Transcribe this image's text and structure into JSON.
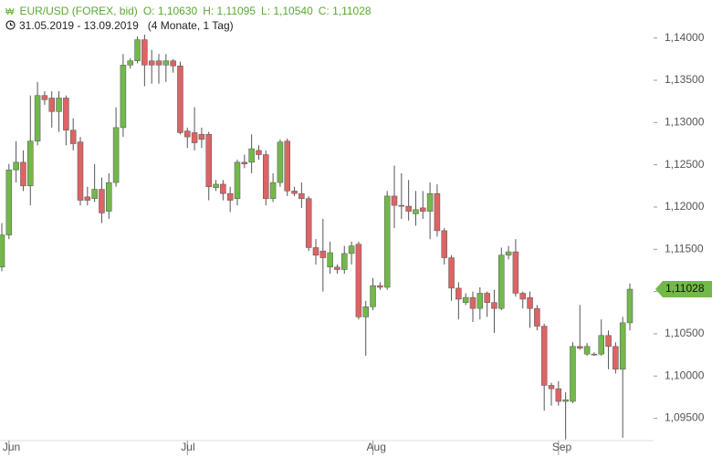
{
  "header": {
    "title": "EUR/USD (FOREX, bid)",
    "ohlc": [
      "O: 1,10630",
      "H: 1,11095",
      "L: 1,10540",
      "C: 1,11028"
    ],
    "range": "31.05.2019 - 13.09.2019",
    "duration": "(4 Monate, 1 Tag)"
  },
  "chart_data": {
    "type": "candlestick",
    "categories": [
      null,
      "Jun",
      null,
      null,
      null,
      null,
      null,
      null,
      null,
      null,
      null,
      null,
      null,
      null,
      null,
      null,
      null,
      null,
      null,
      null,
      null,
      null,
      null,
      null,
      null,
      null,
      "Jul",
      null,
      null,
      null,
      null,
      null,
      null,
      null,
      null,
      null,
      null,
      null,
      null,
      null,
      null,
      null,
      null,
      null,
      null,
      null,
      null,
      null,
      null,
      null,
      null,
      null,
      "Aug",
      null,
      null,
      null,
      null,
      null,
      null,
      null,
      null,
      null,
      null,
      null,
      null,
      null,
      null,
      null,
      null,
      null,
      null,
      null,
      null,
      null,
      null,
      null,
      null,
      null,
      "Sep",
      null,
      null,
      null,
      null,
      null,
      null,
      null,
      null,
      null,
      null
    ],
    "open": [
      1.1129,
      1.1167,
      1.1244,
      1.1253,
      1.1225,
      1.1278,
      1.1332,
      1.1329,
      1.1313,
      1.1329,
      1.1291,
      1.1277,
      1.1212,
      1.121,
      1.1221,
      1.1195,
      1.1229,
      1.1294,
      1.1368,
      1.1373,
      1.1398,
      1.1373,
      1.1373,
      1.1368,
      1.1373,
      1.1367,
      1.129,
      1.1288,
      1.1286,
      1.1286,
      1.1223,
      1.1227,
      1.1216,
      1.121,
      1.1253,
      1.1253,
      1.1267,
      1.1262,
      1.121,
      1.1229,
      1.1278,
      1.1219,
      1.1216,
      1.121,
      1.1152,
      1.1148,
      1.1129,
      1.1129,
      1.1126,
      1.1145,
      1.1156,
      1.107,
      1.1082,
      1.1107,
      1.1105,
      1.1213,
      1.1202,
      1.1201,
      1.1192,
      1.1199,
      1.1195,
      1.1216,
      1.1172,
      1.114,
      1.1104,
      1.1087,
      1.1093,
      1.108,
      1.1098,
      1.1087,
      1.108,
      1.1143,
      1.1147,
      1.1098,
      1.1093,
      1.108,
      1.1059,
      1.0989,
      1.0985,
      1.097,
      1.097,
      1.1035,
      1.1026,
      1.1026,
      1.1026,
      1.1048,
      1.1035,
      1.1008,
      1.1063
    ],
    "high": [
      1.1181,
      1.1251,
      1.1278,
      1.1267,
      1.1332,
      1.1348,
      1.1337,
      1.1337,
      1.1337,
      1.1332,
      1.1305,
      1.1283,
      1.1224,
      1.1251,
      1.1235,
      1.124,
      1.1318,
      1.1381,
      1.1376,
      1.1402,
      1.1404,
      1.1386,
      1.1381,
      1.1381,
      1.1375,
      1.1372,
      1.1294,
      1.1318,
      1.1294,
      1.1289,
      1.1232,
      1.1232,
      1.1224,
      1.1256,
      1.1262,
      1.1286,
      1.1273,
      1.1267,
      1.124,
      1.128,
      1.1281,
      1.1224,
      1.1229,
      1.1213,
      1.1162,
      1.1186,
      1.1159,
      1.1132,
      1.1154,
      1.1159,
      1.1159,
      1.1089,
      1.1116,
      1.1111,
      1.1219,
      1.1249,
      1.124,
      1.1232,
      1.1219,
      1.1219,
      1.1229,
      1.1227,
      1.1175,
      1.1143,
      1.1111,
      1.1098,
      1.11,
      1.1105,
      1.11,
      1.1102,
      1.1152,
      1.1154,
      1.1162,
      1.11,
      1.11,
      1.1084,
      1.1062,
      1.0992,
      1.0994,
      1.0981,
      1.104,
      1.1084,
      1.1039,
      1.1028,
      1.1067,
      1.1054,
      1.104,
      1.107,
      1.11095
    ],
    "low": [
      1.1124,
      1.1162,
      1.1229,
      1.1219,
      1.1202,
      1.1273,
      1.1321,
      1.1294,
      1.1289,
      1.1273,
      1.1267,
      1.1202,
      1.1202,
      1.1206,
      1.1181,
      1.1186,
      1.1224,
      1.1283,
      1.1364,
      1.137,
      1.1343,
      1.1346,
      1.1346,
      1.1348,
      1.1359,
      1.1286,
      1.127,
      1.1267,
      1.127,
      1.1208,
      1.1219,
      1.1208,
      1.1194,
      1.1202,
      1.1246,
      1.124,
      1.1256,
      1.1202,
      1.1206,
      1.1224,
      1.1213,
      1.1213,
      1.1199,
      1.1148,
      1.1132,
      1.11,
      1.1121,
      1.1121,
      1.1121,
      1.1132,
      1.1067,
      1.1024,
      1.1078,
      1.1102,
      1.1102,
      1.1175,
      1.1186,
      1.1184,
      1.1178,
      1.1186,
      1.1162,
      1.1165,
      1.1132,
      1.1089,
      1.1067,
      1.1084,
      1.1064,
      1.1067,
      1.107,
      1.1051,
      1.1078,
      1.1138,
      1.1094,
      1.108,
      1.1057,
      1.1054,
      1.0959,
      1.0965,
      1.0965,
      1.0925,
      1.0968,
      1.1031,
      1.1024,
      1.1024,
      1.1024,
      1.1008,
      1.1003,
      1.0927,
      1.1054
    ],
    "close": [
      1.1167,
      1.1244,
      1.1253,
      1.1225,
      1.1278,
      1.1332,
      1.1327,
      1.1313,
      1.1329,
      1.1291,
      1.1275,
      1.1208,
      1.1208,
      1.1221,
      1.1193,
      1.1229,
      1.1294,
      1.1368,
      1.1373,
      1.1398,
      1.1368,
      1.1368,
      1.1368,
      1.1373,
      1.1367,
      1.1288,
      1.1283,
      1.1276,
      1.128,
      1.1224,
      1.1227,
      1.1216,
      1.1208,
      1.1253,
      1.1251,
      1.1269,
      1.1262,
      1.121,
      1.1229,
      1.1277,
      1.1219,
      1.1216,
      1.121,
      1.1152,
      1.1143,
      1.114,
      1.1146,
      1.1126,
      1.1145,
      1.1154,
      1.107,
      1.1082,
      1.1107,
      1.1105,
      1.1213,
      1.1202,
      1.1201,
      1.1195,
      1.1197,
      1.1195,
      1.1216,
      1.1172,
      1.114,
      1.1104,
      1.1091,
      1.1093,
      1.108,
      1.1098,
      1.1087,
      1.108,
      1.1143,
      1.1147,
      1.1098,
      1.1091,
      1.108,
      1.1059,
      1.0989,
      1.0985,
      1.097,
      1.0972,
      1.1035,
      1.1033,
      1.1035,
      1.1025,
      1.1048,
      1.1035,
      1.1008,
      1.1063,
      1.11028
    ],
    "up_color": "#72b84a",
    "down_color": "#dc6464",
    "ylim": [
      1.0915,
      1.1445
    ],
    "yticks": [
      {
        "value": 1.14,
        "label": "1,14000"
      },
      {
        "value": 1.135,
        "label": "1,13500"
      },
      {
        "value": 1.13,
        "label": "1,13000"
      },
      {
        "value": 1.125,
        "label": "1,12500"
      },
      {
        "value": 1.12,
        "label": "1,12000"
      },
      {
        "value": 1.115,
        "label": "1,11500"
      },
      {
        "value": 1.11,
        "label": "1,11000"
      },
      {
        "value": 1.105,
        "label": "1,10500"
      },
      {
        "value": 1.1,
        "label": "1,10000"
      },
      {
        "value": 1.095,
        "label": "1,09500"
      }
    ],
    "last_price": {
      "value": 1.11028,
      "label": "1,11028"
    }
  }
}
